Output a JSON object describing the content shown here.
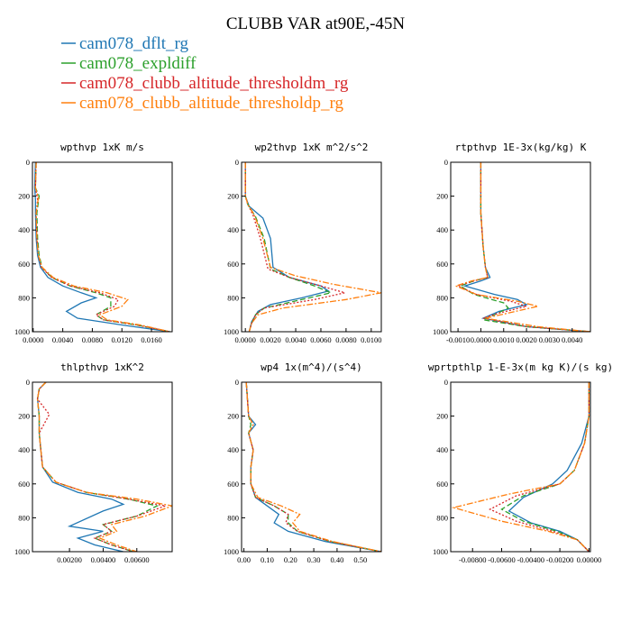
{
  "figure_title": "CLUBB VAR at90E,-45N",
  "legend": [
    {
      "label": "cam078_dflt_rg",
      "color": "#1f77b4",
      "dash": ""
    },
    {
      "label": "cam078_expldiff",
      "color": "#2ca02c",
      "dash": "6,3"
    },
    {
      "label": "cam078_clubb_altitude_thresholdm_rg",
      "color": "#d62728",
      "dash": "2,2"
    },
    {
      "label": "cam078_clubb_altitude_thresholdp_rg",
      "color": "#ff7f0e",
      "dash": "7,2,2,2"
    }
  ],
  "chart_data": [
    {
      "type": "line",
      "title": "wpthvp   1xK m/s",
      "xlim": [
        -0.0001,
        0.0188
      ],
      "ylim": [
        0,
        1000
      ],
      "xticks": [
        0,
        0.004,
        0.008,
        0.012,
        0.016
      ],
      "xtick_labels": [
        "0.0000",
        "0.0040",
        "0.0080",
        "0.0120",
        "0.0160"
      ],
      "yticks": [
        0,
        200,
        400,
        600,
        800,
        1000
      ],
      "ytick_labels": [
        "0",
        "200",
        "400",
        "600",
        "800",
        "1000"
      ],
      "series": [
        {
          "name": "cam078_dflt_rg",
          "x": [
            0.0003,
            0.0002,
            0.0003,
            0.0003,
            0.0004,
            0.0006,
            0.001,
            0.002,
            0.004,
            0.0065,
            0.0085,
            0.0065,
            0.0045,
            0.006,
            0.012,
            0.0185
          ],
          "y": [
            0,
            150,
            220,
            300,
            450,
            550,
            620,
            680,
            730,
            770,
            800,
            830,
            880,
            920,
            960,
            1000
          ]
        },
        {
          "name": "cam078_expldiff",
          "x": [
            0.0004,
            0.0003,
            0.0008,
            0.0005,
            0.0006,
            0.0008,
            0.0012,
            0.0025,
            0.005,
            0.0085,
            0.0105,
            0.0105,
            0.0085,
            0.0095,
            0.014,
            0.0185
          ],
          "y": [
            0,
            150,
            200,
            300,
            450,
            550,
            620,
            680,
            730,
            770,
            800,
            850,
            900,
            930,
            960,
            1000
          ]
        },
        {
          "name": "cam078_clubb_altitude_thresholdm_rg",
          "x": [
            0.0004,
            0.0003,
            0.0006,
            0.0004,
            0.0005,
            0.0007,
            0.0011,
            0.0025,
            0.005,
            0.009,
            0.0115,
            0.011,
            0.0085,
            0.0095,
            0.014,
            0.0185
          ],
          "y": [
            0,
            150,
            220,
            300,
            450,
            550,
            620,
            680,
            730,
            770,
            810,
            850,
            900,
            930,
            960,
            1000
          ]
        },
        {
          "name": "cam078_clubb_altitude_thresholdp_rg",
          "x": [
            0.0004,
            0.0003,
            0.0007,
            0.0004,
            0.0005,
            0.0007,
            0.0012,
            0.0027,
            0.0055,
            0.01,
            0.0128,
            0.012,
            0.009,
            0.01,
            0.0145,
            0.0185
          ],
          "y": [
            0,
            150,
            210,
            300,
            450,
            550,
            620,
            680,
            730,
            770,
            810,
            850,
            900,
            930,
            960,
            1000
          ]
        }
      ]
    },
    {
      "type": "line",
      "title": "wp2thvp   1xK m^2/s^2",
      "xlim": [
        -0.0003,
        0.0108
      ],
      "ylim": [
        0,
        1000
      ],
      "xticks": [
        0,
        0.002,
        0.004,
        0.006,
        0.008,
        0.01
      ],
      "xtick_labels": [
        "0.0000",
        "0.0020",
        "0.0040",
        "0.0060",
        "0.0080",
        "0.0100"
      ],
      "yticks": [
        0,
        200,
        400,
        600,
        800,
        1000
      ],
      "ytick_labels": [
        "0",
        "200",
        "400",
        "600",
        "800",
        "1000"
      ],
      "series": [
        {
          "name": "cam078_dflt_rg",
          "x": [
            0,
            0,
            0.0003,
            0.0014,
            0.002,
            0.0022,
            0.0035,
            0.006,
            0.0066,
            0.0045,
            0.002,
            0.001,
            0.0005,
            0.0003
          ],
          "y": [
            0,
            200,
            260,
            330,
            450,
            620,
            680,
            730,
            760,
            800,
            840,
            880,
            940,
            1000
          ]
        },
        {
          "name": "cam078_expldiff",
          "x": [
            0,
            0,
            0.0002,
            0.0008,
            0.0015,
            0.002,
            0.0035,
            0.0055,
            0.0068,
            0.0045,
            0.0015,
            0.0008,
            0.0005,
            0.0003
          ],
          "y": [
            0,
            200,
            250,
            320,
            450,
            630,
            680,
            730,
            770,
            810,
            860,
            900,
            950,
            1000
          ]
        },
        {
          "name": "cam078_clubb_altitude_thresholdm_rg",
          "x": [
            0,
            0,
            0.0002,
            0.0006,
            0.0012,
            0.0018,
            0.0035,
            0.006,
            0.0079,
            0.0055,
            0.0015,
            0.0008,
            0.0005,
            0.0003
          ],
          "y": [
            0,
            200,
            250,
            310,
            450,
            630,
            680,
            730,
            770,
            810,
            860,
            900,
            950,
            1000
          ]
        },
        {
          "name": "cam078_clubb_altitude_thresholdp_rg",
          "x": [
            0,
            0,
            0.0002,
            0.0007,
            0.0014,
            0.002,
            0.004,
            0.007,
            0.0108,
            0.008,
            0.003,
            0.001,
            0.0005,
            0.0003
          ],
          "y": [
            0,
            200,
            250,
            310,
            450,
            620,
            670,
            720,
            770,
            810,
            860,
            900,
            950,
            1000
          ]
        }
      ]
    },
    {
      "type": "line",
      "title": "rtpthvp   1E-3x(kg/kg) K",
      "xlim": [
        -0.00132,
        0.0048
      ],
      "ylim": [
        0,
        1000
      ],
      "xticks": [
        -0.001,
        0,
        0.001,
        0.002,
        0.003,
        0.004
      ],
      "xtick_labels": [
        "-0.0010",
        "0.0000",
        "0.0010",
        "0.0020",
        "0.0030",
        "0.0040"
      ],
      "yticks": [
        0,
        200,
        400,
        600,
        800,
        1000
      ],
      "ytick_labels": [
        "0",
        "200",
        "400",
        "600",
        "800",
        "1000"
      ],
      "series": [
        {
          "name": "cam078_dflt_rg",
          "x": [
            0,
            0,
            0.0001,
            0.0002,
            0.0004,
            0,
            -0.0007,
            0.0006,
            0.0016,
            0.002,
            0.0008,
            0.0001,
            0.002,
            0.0048
          ],
          "y": [
            0,
            300,
            500,
            620,
            680,
            700,
            730,
            780,
            810,
            840,
            880,
            920,
            970,
            1000
          ]
        },
        {
          "name": "cam078_expldiff",
          "x": [
            0,
            0,
            0.0001,
            0.0002,
            0.0003,
            -0.0003,
            -0.0009,
            -0.0003,
            0.001,
            0.0012,
            0.0006,
            0.0001,
            0.002,
            0.0048
          ],
          "y": [
            0,
            300,
            500,
            620,
            680,
            700,
            730,
            780,
            830,
            860,
            900,
            930,
            970,
            1000
          ]
        },
        {
          "name": "cam078_clubb_altitude_thresholdm_rg",
          "x": [
            0,
            0,
            0.0001,
            0.0002,
            0.0003,
            -0.0003,
            -0.001,
            -0.0002,
            0.0013,
            0.002,
            0.0008,
            0.0001,
            0.002,
            0.0048
          ],
          "y": [
            0,
            300,
            500,
            620,
            680,
            700,
            730,
            780,
            820,
            850,
            890,
            920,
            970,
            1000
          ]
        },
        {
          "name": "cam078_clubb_altitude_thresholdp_rg",
          "x": [
            0,
            0,
            0.0001,
            0.0002,
            0.0003,
            -0.0004,
            -0.0011,
            -0.0002,
            0.0016,
            0.0025,
            0.0012,
            0.0002,
            0.0025,
            0.0048
          ],
          "y": [
            0,
            300,
            500,
            620,
            680,
            700,
            730,
            780,
            820,
            850,
            890,
            920,
            970,
            1000
          ]
        }
      ]
    },
    {
      "type": "line",
      "title": "thlpthvp   1xK^2",
      "xlim": [
        -0.0002,
        0.0081
      ],
      "ylim": [
        0,
        1000
      ],
      "xticks": [
        0.002,
        0.004,
        0.006
      ],
      "xtick_labels": [
        "0.00200",
        "0.00400",
        "0.00600"
      ],
      "yticks": [
        0,
        200,
        400,
        600,
        800,
        1000
      ],
      "ytick_labels": [
        "0",
        "200",
        "400",
        "600",
        "800",
        "1000"
      ],
      "series": [
        {
          "name": "cam078_dflt_rg",
          "x": [
            0.0006,
            0.0002,
            0.0001,
            0.0002,
            0.0002,
            0.0003,
            0.0004,
            0.001,
            0.0025,
            0.0045,
            0.0052,
            0.004,
            0.002,
            0.004,
            0.0025,
            0.0035,
            0.0052
          ],
          "y": [
            0,
            40,
            100,
            200,
            300,
            400,
            500,
            590,
            650,
            690,
            720,
            760,
            850,
            880,
            920,
            960,
            1000
          ]
        },
        {
          "name": "cam078_expldiff",
          "x": [
            0.0006,
            0.0002,
            0.0001,
            0.0002,
            0.0002,
            0.0003,
            0.0004,
            0.0012,
            0.003,
            0.0055,
            0.0072,
            0.006,
            0.004,
            0.0045,
            0.0035,
            0.0045,
            0.0058
          ],
          "y": [
            0,
            40,
            100,
            200,
            300,
            400,
            500,
            590,
            650,
            690,
            730,
            790,
            840,
            880,
            920,
            960,
            1000
          ]
        },
        {
          "name": "cam078_clubb_altitude_thresholdm_rg",
          "x": [
            0.0006,
            0.0002,
            0.0001,
            0.0008,
            0.0002,
            0.0003,
            0.0004,
            0.0012,
            0.003,
            0.0055,
            0.0077,
            0.006,
            0.004,
            0.0045,
            0.0035,
            0.0045,
            0.0058
          ],
          "y": [
            0,
            40,
            100,
            190,
            300,
            400,
            500,
            590,
            650,
            690,
            730,
            790,
            840,
            880,
            920,
            960,
            1000
          ]
        },
        {
          "name": "cam078_clubb_altitude_thresholdp_rg",
          "x": [
            0.0006,
            0.0002,
            0.0001,
            0.0002,
            0.0002,
            0.0003,
            0.0004,
            0.0012,
            0.003,
            0.006,
            0.0081,
            0.0065,
            0.0045,
            0.0048,
            0.0038,
            0.0048,
            0.006
          ],
          "y": [
            0,
            40,
            100,
            200,
            300,
            400,
            500,
            590,
            650,
            690,
            730,
            790,
            840,
            880,
            920,
            960,
            1000
          ]
        }
      ]
    },
    {
      "type": "line",
      "title": "wp4   1x(m^4)/(s^4)",
      "xlim": [
        -0.01,
        0.59
      ],
      "ylim": [
        0,
        1000
      ],
      "xticks": [
        0,
        0.1,
        0.2,
        0.3,
        0.4,
        0.5
      ],
      "xtick_labels": [
        "0.00",
        "0.10",
        "0.20",
        "0.30",
        "0.40",
        "0.50"
      ],
      "yticks": [
        0,
        200,
        400,
        600,
        800,
        1000
      ],
      "ytick_labels": [
        "0",
        "200",
        "400",
        "600",
        "800",
        "1000"
      ],
      "series": [
        {
          "name": "cam078_dflt_rg",
          "x": [
            0.01,
            0.02,
            0.05,
            0.02,
            0.04,
            0.03,
            0.03,
            0.05,
            0.1,
            0.15,
            0.13,
            0.19,
            0.35,
            0.59
          ],
          "y": [
            0,
            200,
            250,
            300,
            400,
            500,
            600,
            680,
            730,
            780,
            830,
            880,
            940,
            1000
          ]
        },
        {
          "name": "cam078_expldiff",
          "x": [
            0.01,
            0.02,
            0.03,
            0.02,
            0.04,
            0.03,
            0.03,
            0.05,
            0.13,
            0.19,
            0.19,
            0.23,
            0.37,
            0.59
          ],
          "y": [
            0,
            200,
            250,
            300,
            400,
            500,
            600,
            680,
            730,
            780,
            830,
            880,
            940,
            1000
          ]
        },
        {
          "name": "cam078_clubb_altitude_thresholdm_rg",
          "x": [
            0.01,
            0.02,
            0.04,
            0.02,
            0.04,
            0.03,
            0.03,
            0.05,
            0.13,
            0.19,
            0.18,
            0.23,
            0.37,
            0.59
          ],
          "y": [
            0,
            200,
            250,
            300,
            400,
            500,
            600,
            680,
            730,
            780,
            830,
            880,
            940,
            1000
          ]
        },
        {
          "name": "cam078_clubb_altitude_thresholdp_rg",
          "x": [
            0.01,
            0.02,
            0.04,
            0.02,
            0.04,
            0.03,
            0.03,
            0.06,
            0.16,
            0.24,
            0.21,
            0.24,
            0.38,
            0.59
          ],
          "y": [
            0,
            200,
            250,
            300,
            400,
            500,
            600,
            680,
            730,
            780,
            830,
            880,
            940,
            1000
          ]
        }
      ]
    },
    {
      "type": "line",
      "title": "wprtpthlp   1-E-3x(m kg K)/(s kg)",
      "xlim": [
        -0.0095,
        0.0001
      ],
      "ylim": [
        0,
        1000
      ],
      "xticks": [
        -0.008,
        -0.006,
        -0.004,
        -0.002,
        0
      ],
      "xtick_labels": [
        "-0.00800",
        "-0.00600",
        "-0.00400",
        "-0.00200",
        "0.00000"
      ],
      "yticks": [
        0,
        200,
        400,
        600,
        800,
        1000
      ],
      "ytick_labels": [
        "0",
        "200",
        "400",
        "600",
        "800",
        "1000"
      ],
      "series": [
        {
          "name": "cam078_dflt_rg",
          "x": [
            0,
            0,
            -0.0005,
            -0.0015,
            -0.0025,
            -0.0045,
            -0.0055,
            -0.004,
            -0.002,
            -0.0008,
            0
          ],
          "y": [
            0,
            200,
            360,
            520,
            600,
            680,
            760,
            830,
            880,
            930,
            1000
          ]
        },
        {
          "name": "cam078_expldiff",
          "x": [
            0,
            0,
            -0.0003,
            -0.001,
            -0.002,
            -0.0045,
            -0.006,
            -0.0045,
            -0.0022,
            -0.0008,
            0
          ],
          "y": [
            0,
            200,
            360,
            520,
            600,
            670,
            750,
            820,
            880,
            930,
            1000
          ]
        },
        {
          "name": "cam078_clubb_altitude_thresholdm_rg",
          "x": [
            0,
            0,
            -0.0003,
            -0.001,
            -0.002,
            -0.005,
            -0.0068,
            -0.005,
            -0.0025,
            -0.0008,
            0
          ],
          "y": [
            0,
            200,
            360,
            520,
            600,
            670,
            750,
            820,
            880,
            930,
            1000
          ]
        },
        {
          "name": "cam078_clubb_altitude_thresholdp_rg",
          "x": [
            0,
            0,
            -0.0003,
            -0.001,
            -0.002,
            -0.0055,
            -0.0093,
            -0.006,
            -0.0028,
            -0.0008,
            0
          ],
          "y": [
            0,
            200,
            360,
            520,
            600,
            660,
            740,
            820,
            880,
            930,
            1000
          ]
        }
      ]
    }
  ]
}
